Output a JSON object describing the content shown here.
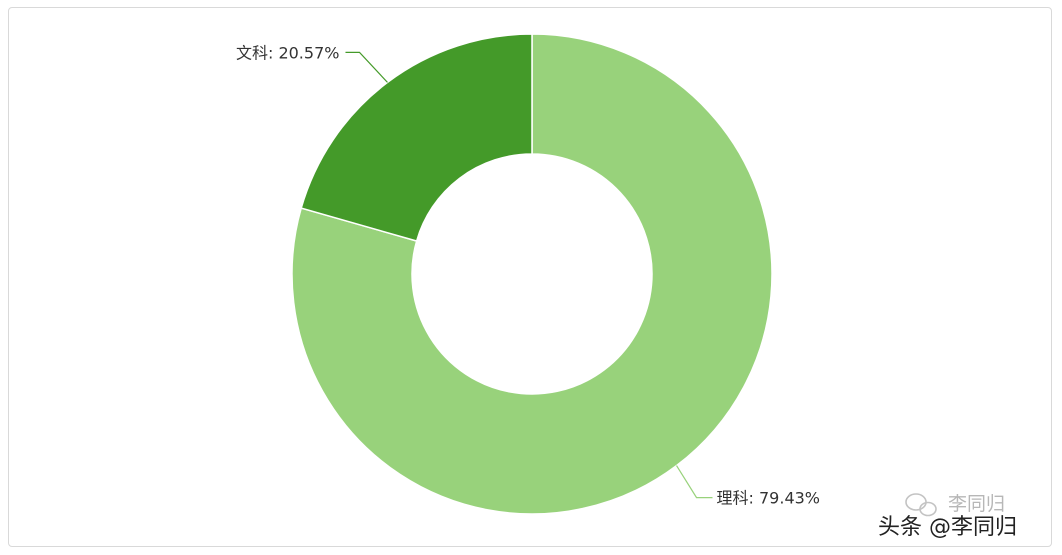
{
  "chart_data": {
    "type": "pie",
    "donut": true,
    "slices": [
      {
        "label": "理科",
        "value": 79.43,
        "display": "理科: 79.43%",
        "color": "#98d27b"
      },
      {
        "label": "文科",
        "value": 20.57,
        "display": "文科: 20.57%",
        "color": "#449a29"
      }
    ],
    "legend": "none"
  },
  "watermark": {
    "line1": "李同归",
    "line2": "头条 @李同归"
  }
}
